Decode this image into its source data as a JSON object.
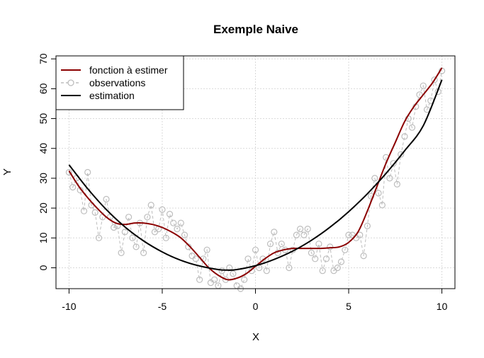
{
  "chart_data": {
    "type": "line",
    "title": "Exemple Naive",
    "xlabel": "X",
    "ylabel": "Y",
    "xlim": [
      -10.7,
      10.7
    ],
    "ylim": [
      -7,
      71
    ],
    "xticks": [
      -10,
      -5,
      0,
      5,
      10
    ],
    "yticks": [
      0,
      10,
      20,
      30,
      40,
      50,
      60,
      70
    ],
    "grid": true,
    "legend_position": "top-left",
    "colors": {
      "true_function": "#8b0000",
      "observations": "#bdbdbd",
      "estimation": "#000000",
      "grid": "#d9d9d9"
    },
    "legend": [
      {
        "label": "fonction à estimer",
        "style": "line",
        "color": "#8b0000"
      },
      {
        "label": "observations",
        "style": "dashed-circle",
        "color": "#bdbdbd"
      },
      {
        "label": "estimation",
        "style": "line",
        "color": "#000000"
      }
    ],
    "series": [
      {
        "label": "fonction à estimer",
        "x": [
          -10,
          -9.5,
          -9,
          -8.5,
          -8,
          -7.5,
          -7,
          -6.5,
          -6,
          -5.5,
          -5,
          -4.5,
          -4,
          -3.5,
          -3,
          -2.5,
          -2,
          -1.5,
          -1,
          -0.5,
          0,
          0.5,
          1,
          1.5,
          2,
          2.5,
          3,
          3.5,
          4,
          4.5,
          5,
          5.5,
          6,
          6.5,
          7,
          7.5,
          8,
          8.5,
          9,
          9.5,
          10
        ],
        "y": [
          32.5,
          27.5,
          23.5,
          20,
          17,
          15,
          14.5,
          15,
          15,
          14.5,
          13.5,
          12,
          10,
          7,
          3.5,
          0,
          -2.5,
          -4,
          -3.5,
          -2,
          0.5,
          3,
          5,
          6,
          6.5,
          6.5,
          6.5,
          6.5,
          6.7,
          7,
          8.5,
          12,
          19,
          27,
          35,
          42,
          49,
          54,
          58,
          62,
          67
        ]
      },
      {
        "label": "estimation",
        "x": [
          -10,
          -9,
          -8,
          -7,
          -6,
          -5,
          -4,
          -3,
          -2,
          -1.5,
          -1,
          0,
          1,
          2,
          3,
          4,
          5,
          6,
          7,
          8,
          9,
          10
        ],
        "y": [
          34.5,
          26.5,
          19.5,
          13.7,
          9,
          5.3,
          2.5,
          0.6,
          -0.6,
          -0.8,
          -0.6,
          0.7,
          2.8,
          5.6,
          9.2,
          13.6,
          18.8,
          24.8,
          31.6,
          39.2,
          47.6,
          63
        ]
      },
      {
        "label": "observations",
        "x": [
          -10,
          -9.8,
          -9.6,
          -9.4,
          -9.2,
          -9,
          -8.8,
          -8.6,
          -8.4,
          -8.2,
          -8,
          -7.8,
          -7.6,
          -7.4,
          -7.2,
          -7,
          -6.8,
          -6.6,
          -6.4,
          -6.2,
          -6,
          -5.8,
          -5.6,
          -5.4,
          -5.2,
          -5,
          -4.8,
          -4.6,
          -4.4,
          -4.2,
          -4,
          -3.8,
          -3.6,
          -3.4,
          -3.2,
          -3,
          -2.8,
          -2.6,
          -2.4,
          -2.2,
          -2,
          -1.8,
          -1.6,
          -1.4,
          -1.2,
          -1,
          -0.8,
          -0.6,
          -0.4,
          -0.2,
          0,
          0.2,
          0.4,
          0.6,
          0.8,
          1,
          1.2,
          1.4,
          1.6,
          1.8,
          2,
          2.2,
          2.4,
          2.6,
          2.8,
          3,
          3.2,
          3.4,
          3.6,
          3.8,
          4,
          4.2,
          4.4,
          4.6,
          4.8,
          5,
          5.2,
          5.4,
          5.6,
          5.8,
          6,
          6.2,
          6.4,
          6.6,
          6.8,
          7,
          7.2,
          7.4,
          7.6,
          7.8,
          8,
          8.2,
          8.4,
          8.6,
          8.8,
          9,
          9.2,
          9.4,
          9.6,
          9.8,
          10
        ],
        "y": [
          32,
          27,
          30,
          26,
          19,
          32,
          21,
          18.5,
          10,
          17,
          23,
          17,
          13.5,
          14,
          5,
          12,
          17,
          10,
          7,
          15,
          5,
          17,
          21,
          12,
          13,
          19.5,
          10,
          18,
          15,
          13,
          15,
          11,
          7,
          4,
          3,
          -4,
          3,
          6,
          -5,
          -4,
          -6,
          -1,
          -4,
          0,
          -2,
          -6,
          -7,
          -4,
          3,
          -1,
          6,
          0,
          3,
          -1,
          8,
          12,
          5,
          8,
          6,
          0,
          6,
          11,
          13,
          11,
          13,
          5,
          3,
          8,
          -1,
          3,
          7,
          -1,
          0,
          2,
          6,
          11,
          11,
          10,
          11,
          4,
          14,
          24,
          30,
          25,
          21,
          37,
          30,
          35,
          28,
          38,
          44,
          50,
          47,
          54,
          58,
          61,
          53,
          56,
          63,
          59,
          66
        ]
      }
    ]
  }
}
